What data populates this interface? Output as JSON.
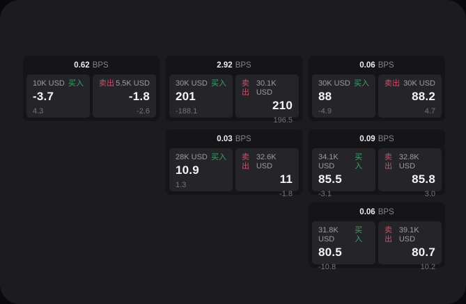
{
  "labels": {
    "bps": "BPS",
    "buy": "买入",
    "sell": "卖出"
  },
  "colors": {
    "buy_green": "#3ca368",
    "sell_red": "#c75268",
    "window_bg": "#1c1c1e",
    "card_bg": "#151517",
    "panel_bg": "#252529"
  },
  "cards": [
    {
      "bps": "0.62",
      "buy": {
        "amount": "10K USD",
        "price": "-3.7",
        "delta": "4.3"
      },
      "sell": {
        "amount": "5.5K USD",
        "price": "-1.8",
        "delta": "-2.6"
      }
    },
    {
      "bps": "2.92",
      "buy": {
        "amount": "30K USD",
        "price": "201",
        "delta": "-188.1"
      },
      "sell": {
        "amount": "30.1K USD",
        "price": "210",
        "delta": "196.5"
      }
    },
    {
      "bps": "0.06",
      "buy": {
        "amount": "30K USD",
        "price": "88",
        "delta": "-4.9"
      },
      "sell": {
        "amount": "30K USD",
        "price": "88.2",
        "delta": "4.7"
      }
    },
    {
      "bps": "0.03",
      "buy": {
        "amount": "28K USD",
        "price": "10.9",
        "delta": "1.3"
      },
      "sell": {
        "amount": "32.6K USD",
        "price": "11",
        "delta": "-1.8"
      }
    },
    {
      "bps": "0.09",
      "buy": {
        "amount": "34.1K USD",
        "price": "85.5",
        "delta": "-3.1"
      },
      "sell": {
        "amount": "32.8K USD",
        "price": "85.8",
        "delta": "3.0"
      }
    },
    {
      "bps": "0.06",
      "buy": {
        "amount": "31.8K USD",
        "price": "80.5",
        "delta": "-10.8"
      },
      "sell": {
        "amount": "39.1K USD",
        "price": "80.7",
        "delta": "10.2"
      }
    }
  ]
}
